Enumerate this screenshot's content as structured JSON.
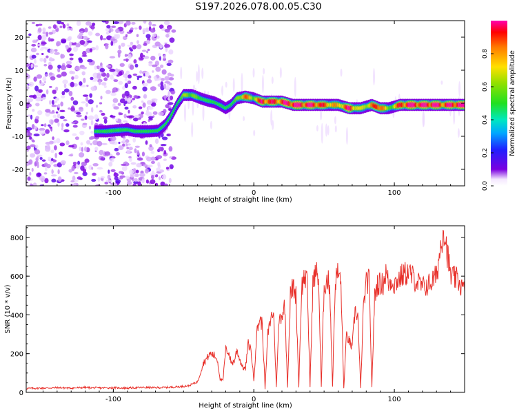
{
  "title": "S197.2026.078.00.05.C30",
  "colors": {
    "axis": "#000000",
    "snr_line": "#e8302a"
  },
  "chart_data": [
    {
      "type": "heatmap",
      "title": "S197.2026.078.00.05.C30",
      "xlabel": "Height of straight line (km)",
      "ylabel": "Frequency (Hz)",
      "xlim": [
        -162,
        150
      ],
      "ylim": [
        -25,
        25
      ],
      "x_ticks": [
        -100,
        0,
        100
      ],
      "x_tick_labels": [
        "-100",
        "0",
        "100"
      ],
      "y_ticks": [
        -20,
        -10,
        0,
        10,
        20
      ],
      "y_tick_labels": [
        "-20",
        "-10",
        "0",
        "10",
        "20"
      ],
      "colorbar": {
        "label": "Normalized spectral amplitude",
        "range": [
          0,
          1
        ],
        "ticks": [
          0.0,
          0.2,
          0.4,
          0.6,
          0.8
        ],
        "tick_labels": [
          "0.0",
          "0.2",
          "0.4",
          "0.6",
          "0.8"
        ]
      },
      "ridge": {
        "x": [
          -113,
          -105,
          -98,
          -90,
          -84,
          -75,
          -68,
          -63,
          -59,
          -54,
          -50,
          -44,
          -38,
          -33,
          -28,
          -24,
          -20,
          -16,
          -12,
          -6,
          0,
          6,
          12,
          20,
          28,
          36,
          44,
          52,
          60,
          68,
          76,
          84,
          90,
          96,
          104,
          112,
          120,
          128,
          136,
          144,
          150
        ],
        "frequency": [
          -8.5,
          -8.5,
          -8.2,
          -8.0,
          -8.5,
          -8.5,
          -8.3,
          -6.5,
          -4.0,
          0.0,
          2.5,
          2.5,
          1.5,
          0.8,
          0.3,
          -0.5,
          -1.5,
          -0.5,
          1.5,
          2.0,
          1.5,
          0.5,
          0.5,
          0.5,
          -0.5,
          -0.5,
          -0.5,
          -0.5,
          -0.5,
          -1.5,
          -1.5,
          -0.5,
          -1.5,
          -1.5,
          -0.5,
          -0.5,
          -0.5,
          -0.5,
          -0.5,
          -0.5,
          -0.5
        ],
        "amplitude": [
          0.25,
          0.35,
          0.45,
          0.3,
          0.3,
          0.25,
          0.3,
          0.35,
          0.45,
          0.45,
          0.55,
          0.6,
          0.45,
          0.4,
          0.25,
          0.3,
          0.25,
          0.35,
          0.55,
          0.8,
          0.6,
          0.9,
          0.85,
          0.85,
          0.95,
          0.9,
          0.9,
          0.8,
          0.7,
          0.9,
          0.6,
          0.75,
          0.95,
          0.5,
          0.85,
          0.95,
          0.9,
          0.95,
          0.85,
          0.95,
          0.9
        ]
      },
      "noise_region_x": [
        -162,
        -57
      ]
    },
    {
      "type": "line",
      "xlabel": "Height of straight line (km)",
      "ylabel": "SNR (10 * v/v)",
      "xlim": [
        -162,
        150
      ],
      "ylim": [
        0,
        860
      ],
      "x_ticks": [
        -100,
        0,
        100
      ],
      "x_tick_labels": [
        "-100",
        "0",
        "100"
      ],
      "y_ticks": [
        0,
        200,
        400,
        600,
        800
      ],
      "y_tick_labels": [
        "0",
        "200",
        "400",
        "600",
        "800"
      ],
      "series": [
        {
          "name": "SNR",
          "x": [
            -162,
            -150,
            -140,
            -130,
            -120,
            -110,
            -100,
            -90,
            -80,
            -70,
            -60,
            -52,
            -46,
            -40,
            -36,
            -33,
            -31,
            -28,
            -26,
            -24,
            -22,
            -20,
            -18,
            -16,
            -14,
            -12,
            -10,
            -8,
            -6,
            -4,
            -2,
            0,
            2,
            4,
            6,
            8,
            10,
            12,
            14,
            16,
            18,
            20,
            22,
            24,
            26,
            28,
            30,
            32,
            34,
            36,
            38,
            40,
            42,
            44,
            46,
            48,
            50,
            52,
            54,
            56,
            58,
            60,
            62,
            64,
            66,
            68,
            70,
            72,
            74,
            76,
            78,
            80,
            82,
            84,
            86,
            88,
            90,
            92,
            94,
            96,
            98,
            100,
            105,
            110,
            115,
            120,
            125,
            130,
            135,
            140,
            145,
            150
          ],
          "snr": [
            20,
            22,
            24,
            22,
            25,
            23,
            24,
            22,
            25,
            24,
            26,
            30,
            35,
            55,
            150,
            180,
            200,
            190,
            170,
            70,
            60,
            220,
            210,
            150,
            160,
            220,
            170,
            130,
            120,
            250,
            220,
            60,
            300,
            380,
            350,
            20,
            300,
            380,
            420,
            30,
            380,
            400,
            450,
            30,
            500,
            550,
            500,
            30,
            540,
            600,
            560,
            30,
            560,
            620,
            600,
            30,
            550,
            580,
            560,
            30,
            580,
            620,
            560,
            20,
            300,
            260,
            230,
            420,
            400,
            20,
            440,
            560,
            580,
            30,
            500,
            560,
            560,
            560,
            620,
            560,
            580,
            560,
            600,
            620,
            580,
            540,
            560,
            600,
            860,
            600,
            580,
            520
          ]
        }
      ]
    }
  ]
}
